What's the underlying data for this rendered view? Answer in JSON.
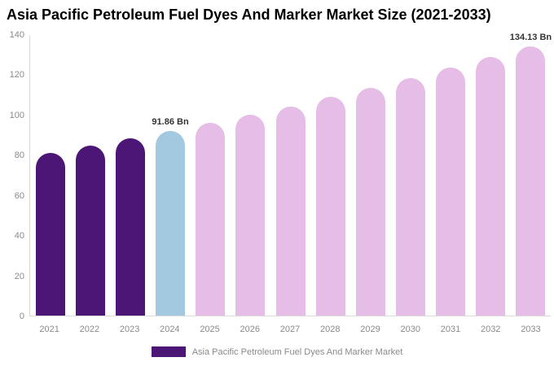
{
  "title": "Asia Pacific Petroleum Fuel Dyes And Marker Market Size (2021-2033)",
  "colors": {
    "historical_bar": "#4c1677",
    "current_year_bar": "#a3c9e0",
    "forecast_bar": "#e5bde6",
    "axis_line": "#d9d9d9",
    "tick_text": "#8a8a8a",
    "annotation_text": "#333333",
    "title_text": "#000000",
    "background": "#ffffff"
  },
  "chart_data": {
    "type": "bar",
    "title": "Asia Pacific Petroleum Fuel Dyes And Marker Market Size (2021-2033)",
    "xlabel": "",
    "ylabel": "",
    "categories": [
      "2021",
      "2022",
      "2023",
      "2024",
      "2025",
      "2026",
      "2027",
      "2028",
      "2029",
      "2030",
      "2031",
      "2032",
      "2033"
    ],
    "values": [
      80.9,
      84.4,
      88.1,
      91.86,
      95.8,
      99.9,
      104.2,
      108.7,
      113.4,
      118.3,
      123.3,
      128.7,
      134.13
    ],
    "bar_colors": [
      "#4c1677",
      "#4c1677",
      "#4c1677",
      "#a3c9e0",
      "#e5bde6",
      "#e5bde6",
      "#e5bde6",
      "#e5bde6",
      "#e5bde6",
      "#e5bde6",
      "#e5bde6",
      "#e5bde6",
      "#e5bde6"
    ],
    "yticks": [
      0,
      20,
      40,
      60,
      80,
      100,
      120,
      140
    ],
    "ylim": [
      0,
      140
    ],
    "grid": false,
    "legend_position": "bottom",
    "annotations": [
      {
        "index": 3,
        "text": "91.86 Bn"
      },
      {
        "index": 12,
        "text": "134.13 Bn"
      }
    ]
  },
  "legend": {
    "swatch_color": "#4c1677",
    "label": "Asia Pacific Petroleum Fuel Dyes And Marker Market"
  }
}
